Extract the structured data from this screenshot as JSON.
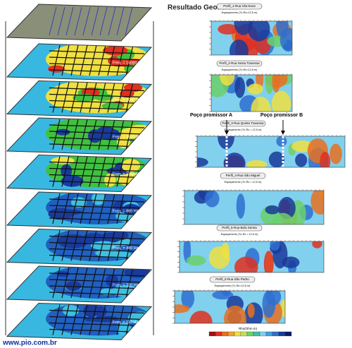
{
  "title": "Resultado Geofísico:",
  "layers": [
    "Freq. = 14080 Hz",
    "Freq. = 7040 Hz",
    "Freq. = 3520 Hz",
    "Freq. = 1760 Hz",
    "Freq. = 880 Hz",
    "Freq. = 440 Hz",
    "Freq. = 220 Hz",
    "Freq. = 110 Hz"
  ],
  "profiles": [
    {
      "title": "Perfil_1-Rua Vila Nova",
      "subtitle": "Espaçamento (Tx-Rx=12,5 m)"
    },
    {
      "title": "Perfil_2-Rua Sexta Travessa",
      "subtitle": "Espaçamento (Tx-Rx=12,5 m)"
    },
    {
      "title": "Perfil_3-Rua Quinta Travessa",
      "subtitle": "Espaçamento (Tx-Rx = 12,5 m)"
    },
    {
      "title": "Perfil_4-Rua São Miguel",
      "subtitle": "Espaçamento (Tx-Rx = 12,5 m)"
    },
    {
      "title": "Perfil_5-Rua Bela Sereia",
      "subtitle": "Espaçamento (Tx-Rx = 12,5 m)"
    },
    {
      "title": "Perfil_6-Rua São Pedro",
      "subtitle": "Espaçamento (Tx-Rx=12,5 m)"
    }
  ],
  "annotations": [
    "Poço promissor A",
    "Poço promissor B"
  ],
  "legend": {
    "label": "Rho(Ohm.m)"
  },
  "watermark": "www.pio.com.br"
}
